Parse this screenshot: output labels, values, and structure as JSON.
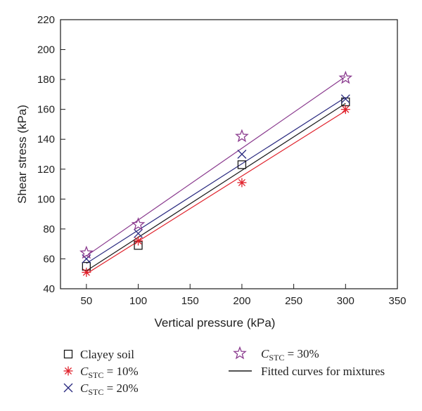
{
  "chart_data": {
    "type": "scatter",
    "xlabel": "Vertical pressure (kPa)",
    "ylabel": "Shear stress (kPa)",
    "xlim": [
      25,
      350
    ],
    "ylim": [
      40,
      220
    ],
    "x_ticks": [
      50,
      100,
      150,
      200,
      250,
      300,
      350
    ],
    "y_ticks": [
      40,
      60,
      80,
      100,
      120,
      140,
      160,
      180,
      200,
      220
    ],
    "grid": false,
    "legend_position": "bottom",
    "series": [
      {
        "name_main": "Clayey soil",
        "name_sub": "",
        "name_suffix": "",
        "marker": "square",
        "color": "#1a1a1a",
        "x": [
          50,
          100,
          200,
          300
        ],
        "y": [
          55,
          69,
          123,
          165
        ],
        "fit": [
          [
            50,
            52
          ],
          [
            300,
            164
          ]
        ]
      },
      {
        "name_main": "C",
        "name_sub": "STC",
        "name_suffix": " = 10%",
        "marker": "asterisk",
        "color": "#e0202a",
        "x": [
          50,
          100,
          200,
          300
        ],
        "y": [
          51,
          72,
          111,
          160
        ],
        "fit": [
          [
            50,
            50
          ],
          [
            300,
            159
          ]
        ]
      },
      {
        "name_main": "C",
        "name_sub": "STC",
        "name_suffix": " = 20%",
        "marker": "x",
        "color": "#2a2a80",
        "x": [
          50,
          100,
          200,
          300
        ],
        "y": [
          60,
          77,
          130,
          167
        ],
        "fit": [
          [
            50,
            57
          ],
          [
            300,
            168
          ]
        ]
      },
      {
        "name_main": "C",
        "name_sub": "STC",
        "name_suffix": " = 30%",
        "marker": "star",
        "color": "#8a3a8e",
        "x": [
          50,
          100,
          200,
          300
        ],
        "y": [
          64,
          83,
          142,
          181
        ],
        "fit": [
          [
            50,
            62
          ],
          [
            300,
            182
          ]
        ]
      }
    ],
    "fit_legend_label": "Fitted curves for mixtures",
    "fit_legend_color": "#1a1a1a"
  }
}
